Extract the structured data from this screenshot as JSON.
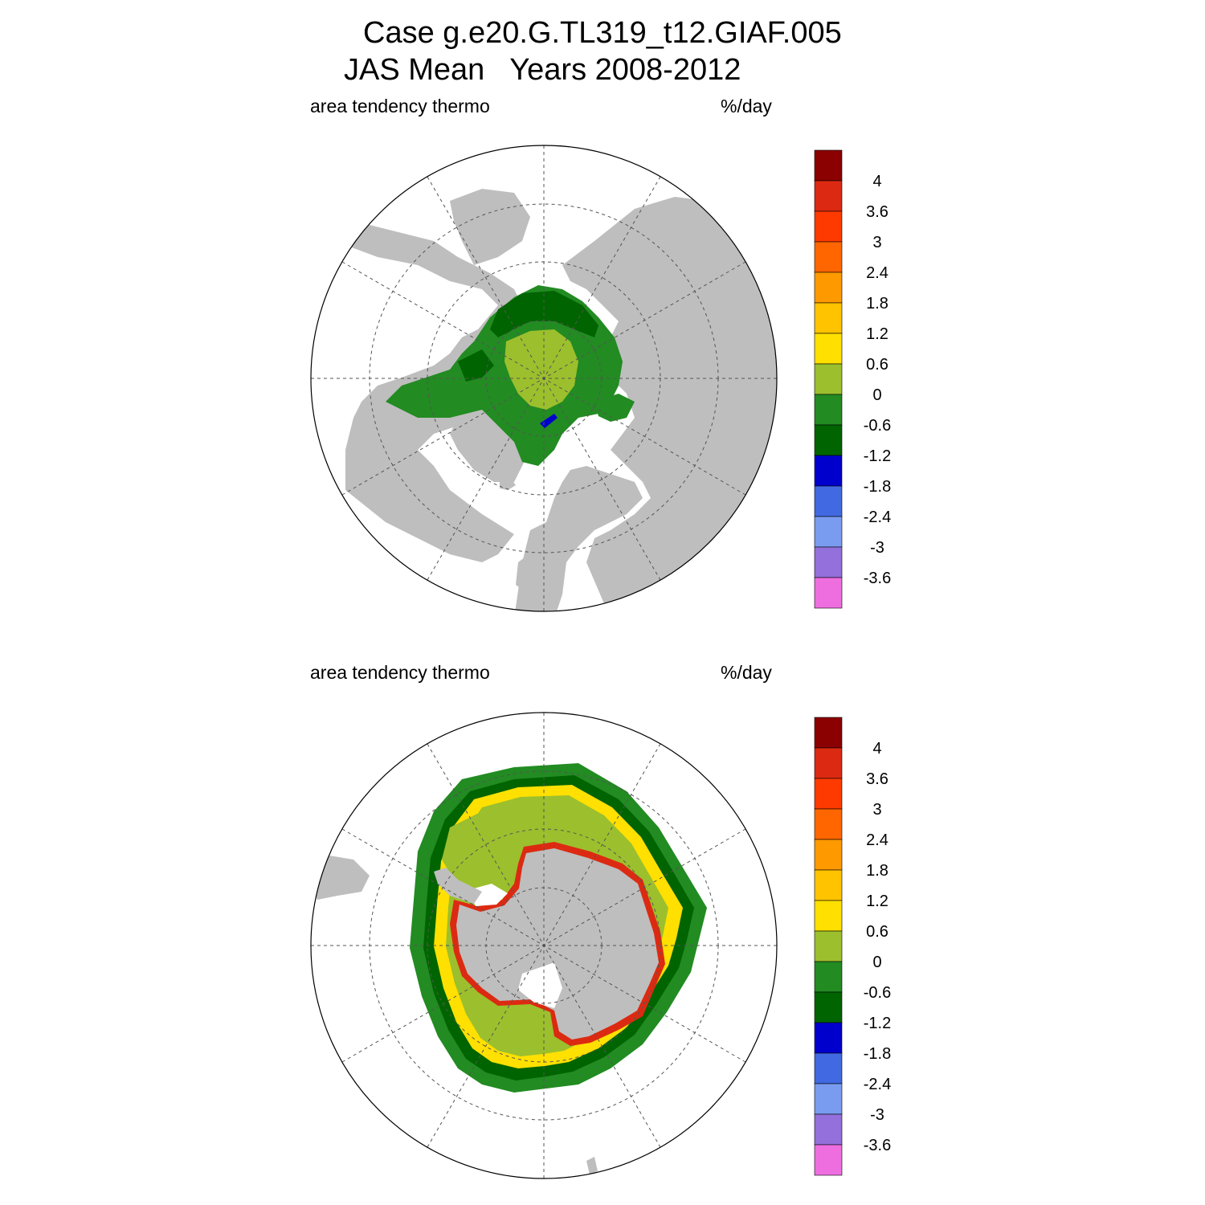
{
  "title": {
    "line1": "Case g.e20.G.TL319_t12.GIAF.005",
    "line2": "JAS Mean   Years 2008-2012"
  },
  "panels": [
    {
      "id": "north",
      "hemisphere": "north",
      "left_label": "area tendency thermo",
      "right_label": "%/day"
    },
    {
      "id": "south",
      "hemisphere": "south",
      "left_label": "area tendency thermo",
      "right_label": "%/day"
    }
  ],
  "colorbar": {
    "colors": [
      "#8b0000",
      "#dc2a12",
      "#ff3a00",
      "#ff6600",
      "#ff9900",
      "#ffc300",
      "#ffe000",
      "#9cbf2d",
      "#228b22",
      "#006400",
      "#0000cd",
      "#4169e1",
      "#7a9cf0",
      "#9370db",
      "#ee6ee0"
    ],
    "tick_labels": [
      "4",
      "3.6",
      "3",
      "2.4",
      "1.8",
      "1.2",
      "0.6",
      "0",
      "-0.6",
      "-1.2",
      "-1.8",
      "-2.4",
      "-3",
      "-3.6"
    ]
  },
  "colors": {
    "land": "#bebebe",
    "ocean": "#ffffff",
    "grid": "#555555"
  }
}
